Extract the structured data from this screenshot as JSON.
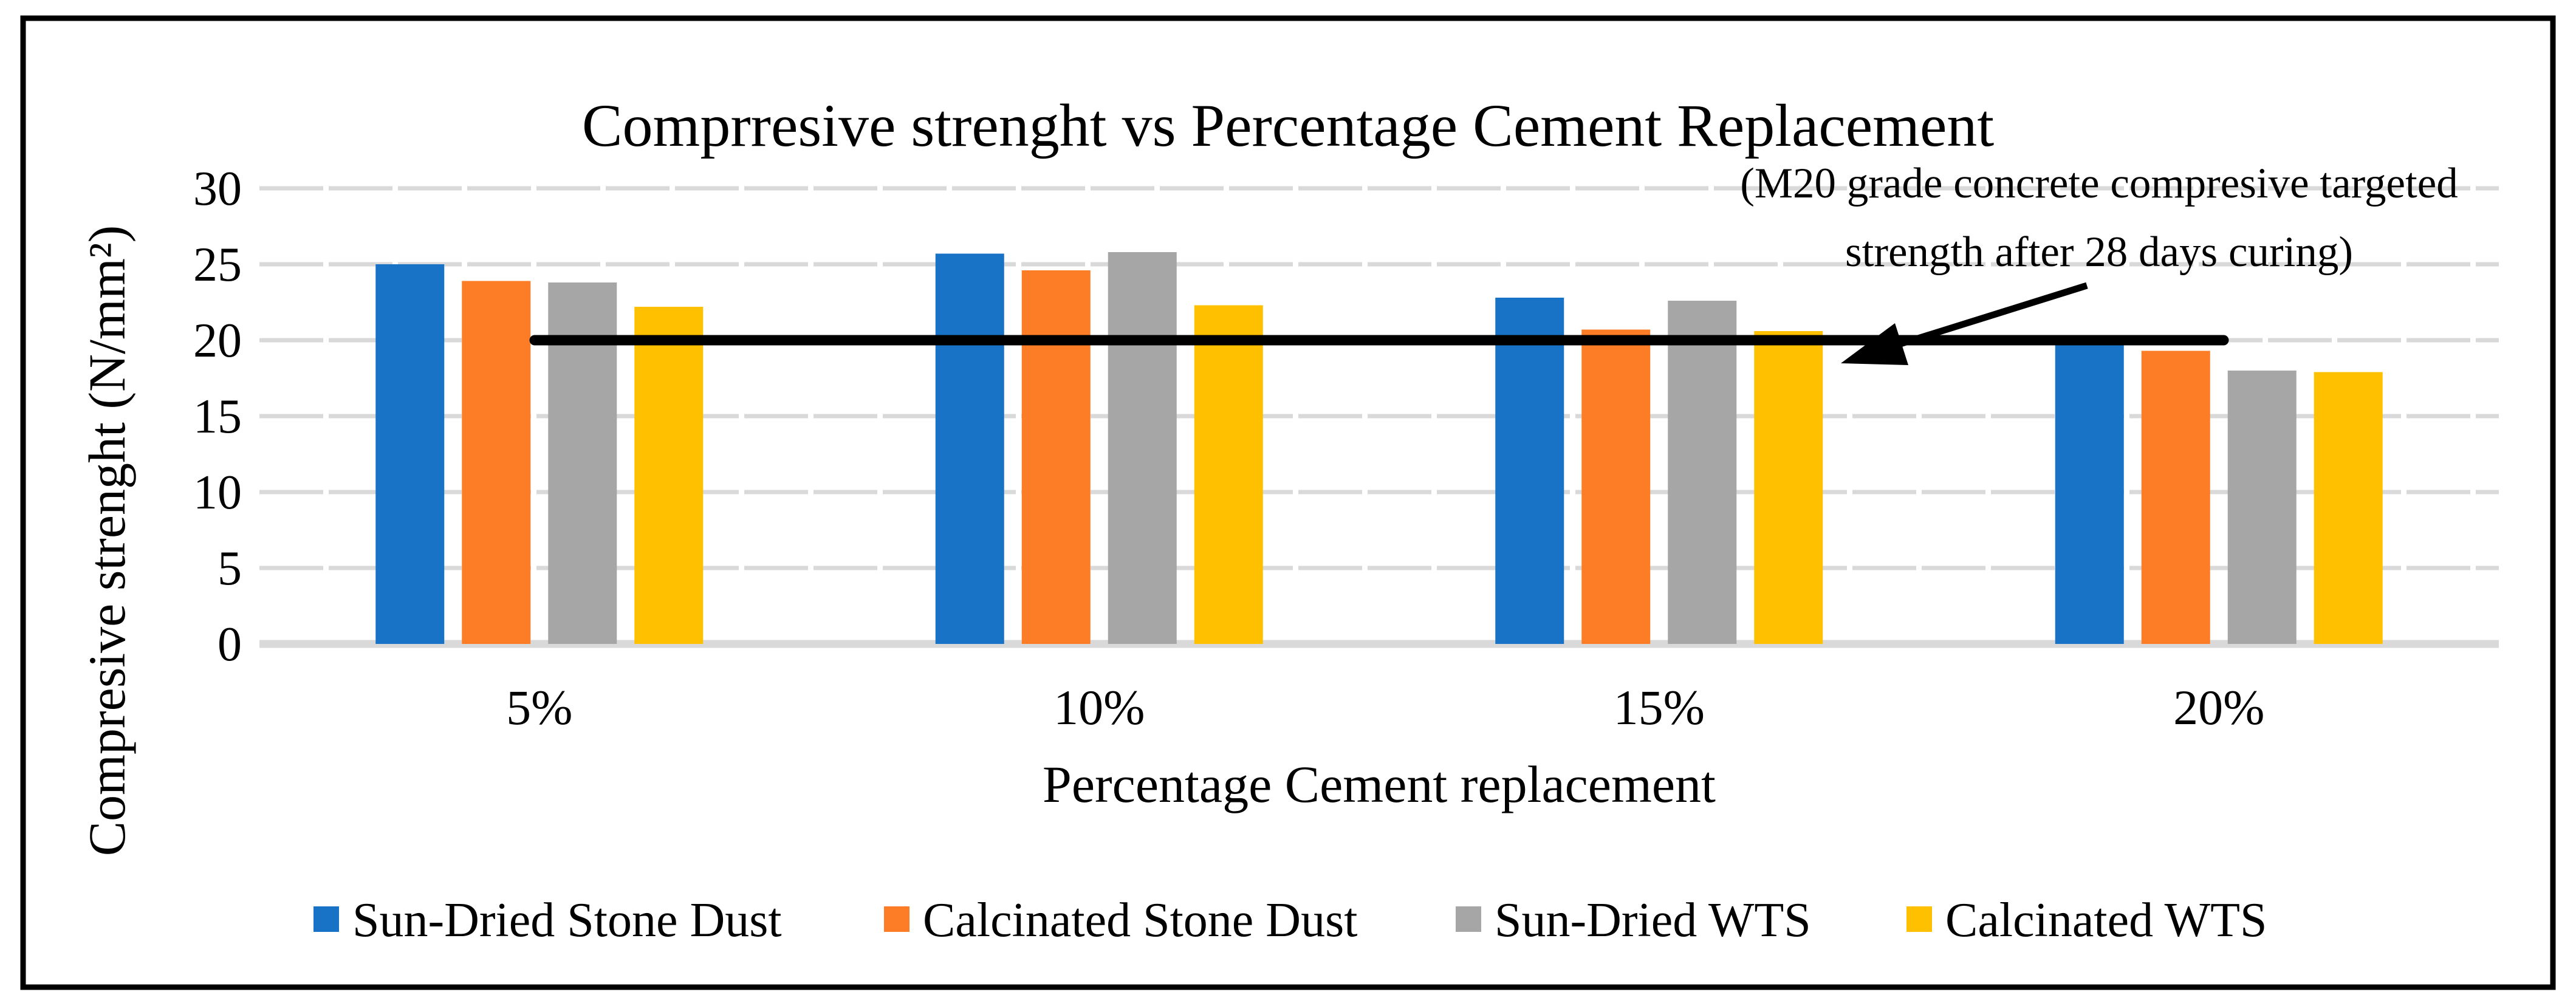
{
  "chart_data": {
    "type": "bar",
    "title": "Comprresive strenght vs Percentage Cement Replacement",
    "xlabel": "Percentage Cement replacement",
    "ylabel": "Compresive strenght (N/mm²)",
    "categories": [
      "5%",
      "10%",
      "15%",
      "20%"
    ],
    "series": [
      {
        "name": "Sun-Dried Stone Dust",
        "color": "#1873C6",
        "values": [
          25.0,
          25.7,
          22.8,
          19.8
        ]
      },
      {
        "name": "Calcinated Stone Dust",
        "color": "#FC7D26",
        "values": [
          23.9,
          24.6,
          20.7,
          19.3
        ]
      },
      {
        "name": "Sun-Dried WTS",
        "color": "#A6A6A6",
        "values": [
          23.8,
          25.8,
          22.6,
          18.0
        ]
      },
      {
        "name": "Calcinated WTS",
        "color": "#FFC000",
        "values": [
          22.2,
          22.3,
          20.6,
          17.9
        ]
      }
    ],
    "ylim": [
      0,
      30
    ],
    "yticks": [
      0,
      5,
      10,
      15,
      20,
      25,
      30
    ],
    "grid": "horizontal-dashed",
    "gridline_color": "#D9D9D9",
    "legend_position": "bottom",
    "target_line": {
      "value": 20,
      "color": "#000000",
      "annotation_line1": "(M20 grade concrete compresive targeted",
      "annotation_line2": "strength after 28 days curing)",
      "annotation_color": "#A63E10"
    }
  }
}
